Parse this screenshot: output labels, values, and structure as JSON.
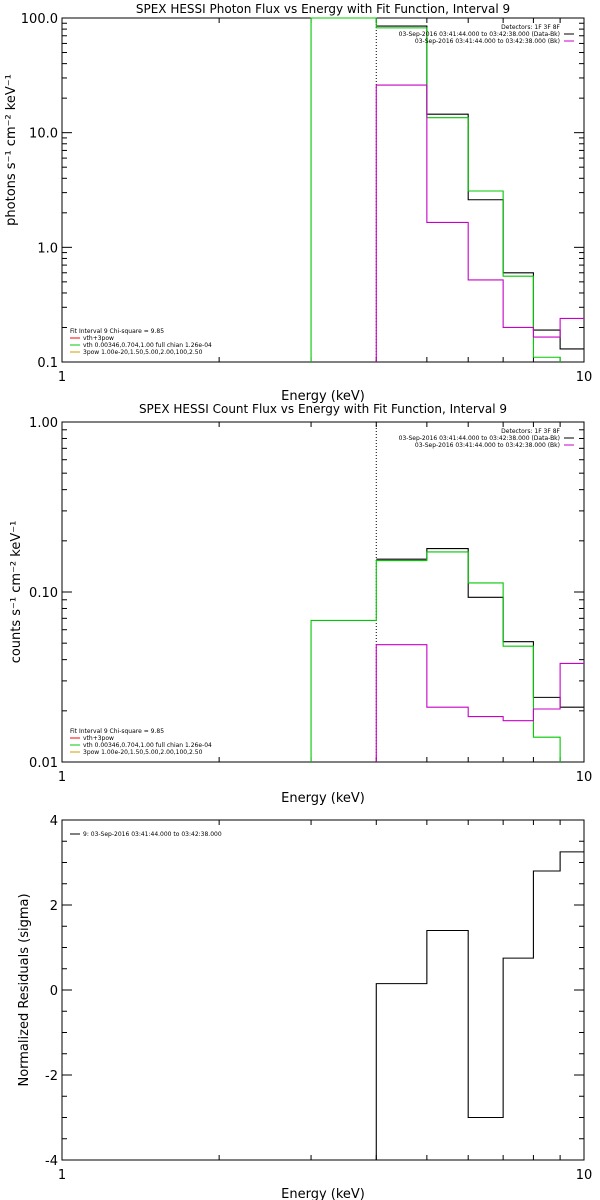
{
  "legend_colors": {
    "detectors_black": "#000000",
    "spex_red": "#ff0000",
    "green": "#00c800",
    "magenta": "#c800c8",
    "orange": "#d79b00"
  },
  "chart_data": [
    {
      "type": "line",
      "title": "SPEX HESSI Photon Flux vs Energy with Fit Function, Interval 9",
      "xlabel": "Energy (keV)",
      "ylabel": "photons s⁻¹ cm⁻² keV⁻¹",
      "xscale": "log",
      "yscale": "log",
      "xlim": [
        1,
        10
      ],
      "ylim": [
        0.1,
        100
      ],
      "xticks": [
        {
          "v": 1,
          "label": "1"
        },
        {
          "v": 10,
          "label": "10"
        }
      ],
      "yticks": [
        {
          "v": 0.1,
          "label": "0.1"
        },
        {
          "v": 1,
          "label": "1.0"
        },
        {
          "v": 10,
          "label": "10.0"
        },
        {
          "v": 100,
          "label": "100.0"
        }
      ],
      "marker_line_x": 4.0,
      "legend_right": [
        "Detectors: 1F 3F 8F",
        "03-Sep-2016 03:41:44.000 to 03:42:38.000 (Data-Bk)",
        "03-Sep-2016 03:41:44.000 to 03:42:38.000 (Bk)"
      ],
      "legend_right_colors": [
        "#000000",
        "#000000",
        "#c800c8"
      ],
      "legend_left": [
        "Fit Interval 9   Chi-square = 9.85",
        "vth+3pow",
        "vth 0.00346,0.704,1.00  full chian 1.26e-04",
        "3pow 1.00e-20,1.50,5.00,2.00,100,2.50"
      ],
      "legend_left_colors": [
        "#000000",
        "#ff0000",
        "#00c800",
        "#d79b00"
      ],
      "series": [
        {
          "color": "#000000",
          "edges": [
            4.0,
            5.0,
            6.0,
            7.0,
            8.0,
            9.0,
            10.0
          ],
          "values": [
            85,
            14.5,
            2.6,
            0.6,
            0.19,
            0.13
          ]
        },
        {
          "color": "#00c800",
          "edges": [
            3.0,
            4.0,
            5.0,
            6.0,
            7.0,
            8.0,
            9.0
          ],
          "values": [
            100,
            82,
            13.5,
            3.1,
            0.56,
            0.11
          ],
          "floor_left": true,
          "floor_right": true
        },
        {
          "color": "#c800c8",
          "edges": [
            4.0,
            5.0,
            6.0,
            7.0,
            8.0,
            9.0,
            10.0
          ],
          "values": [
            26,
            1.65,
            0.52,
            0.2,
            0.165,
            0.24
          ],
          "floor_left": true
        }
      ]
    },
    {
      "type": "line",
      "title": "SPEX HESSI Count Flux vs Energy with Fit Function, Interval 9",
      "xlabel": "Energy (keV)",
      "ylabel": "counts s⁻¹ cm⁻² keV⁻¹",
      "xscale": "log",
      "yscale": "log",
      "xlim": [
        1,
        10
      ],
      "ylim": [
        0.01,
        1
      ],
      "xticks": [
        {
          "v": 1,
          "label": "1"
        },
        {
          "v": 10,
          "label": "10"
        }
      ],
      "yticks": [
        {
          "v": 0.01,
          "label": "0.01"
        },
        {
          "v": 0.1,
          "label": "0.10"
        },
        {
          "v": 1,
          "label": "1.00"
        }
      ],
      "marker_line_x": 4.0,
      "legend_right": [
        "Detectors: 1F 3F 8F",
        "03-Sep-2016 03:41:44.000 to 03:42:38.000 (Data-Bk)",
        "03-Sep-2016 03:41:44.000 to 03:42:38.000 (Bk)"
      ],
      "legend_right_colors": [
        "#000000",
        "#000000",
        "#c800c8"
      ],
      "legend_left": [
        "Fit Interval 9   Chi-square = 9.85",
        "vth+3pow",
        "vth 0.00346,0.704,1.00  full chian 1.26e-04",
        "3pow 1.00e-20,1.50,5.00,2.00,100,2.50"
      ],
      "legend_left_colors": [
        "#000000",
        "#ff0000",
        "#00c800",
        "#d79b00"
      ],
      "series": [
        {
          "color": "#000000",
          "edges": [
            4.0,
            5.0,
            6.0,
            7.0,
            8.0,
            9.0,
            10.0
          ],
          "values": [
            0.156,
            0.18,
            0.093,
            0.051,
            0.024,
            0.021
          ]
        },
        {
          "color": "#00c800",
          "edges": [
            3.0,
            4.0,
            5.0,
            6.0,
            7.0,
            8.0,
            9.0
          ],
          "values": [
            0.068,
            0.153,
            0.172,
            0.113,
            0.048,
            0.014
          ],
          "floor_left": true,
          "floor_right": true
        },
        {
          "color": "#c800c8",
          "edges": [
            4.0,
            5.0,
            6.0,
            7.0,
            8.0,
            9.0,
            10.0
          ],
          "values": [
            0.049,
            0.021,
            0.0185,
            0.0175,
            0.0205,
            0.038
          ],
          "floor_left": true
        }
      ]
    },
    {
      "type": "line",
      "title": "",
      "xlabel": "Energy (keV)",
      "ylabel": "Normalized Residuals (sigma)",
      "xscale": "log",
      "yscale": "linear",
      "xlim": [
        1,
        10
      ],
      "ylim": [
        -4,
        4
      ],
      "xticks": [
        {
          "v": 1,
          "label": "1"
        },
        {
          "v": 10,
          "label": "10"
        }
      ],
      "yticks": [
        {
          "v": -4,
          "label": "-4"
        },
        {
          "v": -2,
          "label": "-2"
        },
        {
          "v": 0,
          "label": "0"
        },
        {
          "v": 2,
          "label": "2"
        },
        {
          "v": 4,
          "label": "4"
        }
      ],
      "legend_left": [
        "9: 03-Sep-2016 03:41:44.000 to 03:42:38.000"
      ],
      "legend_left_colors": [
        "#000000"
      ],
      "series": [
        {
          "color": "#000000",
          "edges": [
            4.0,
            5.0,
            6.0,
            7.0,
            8.0,
            9.0,
            10.0
          ],
          "values": [
            0.15,
            1.4,
            -3.0,
            0.75,
            2.8,
            3.25
          ],
          "floor_left": true
        }
      ]
    }
  ]
}
